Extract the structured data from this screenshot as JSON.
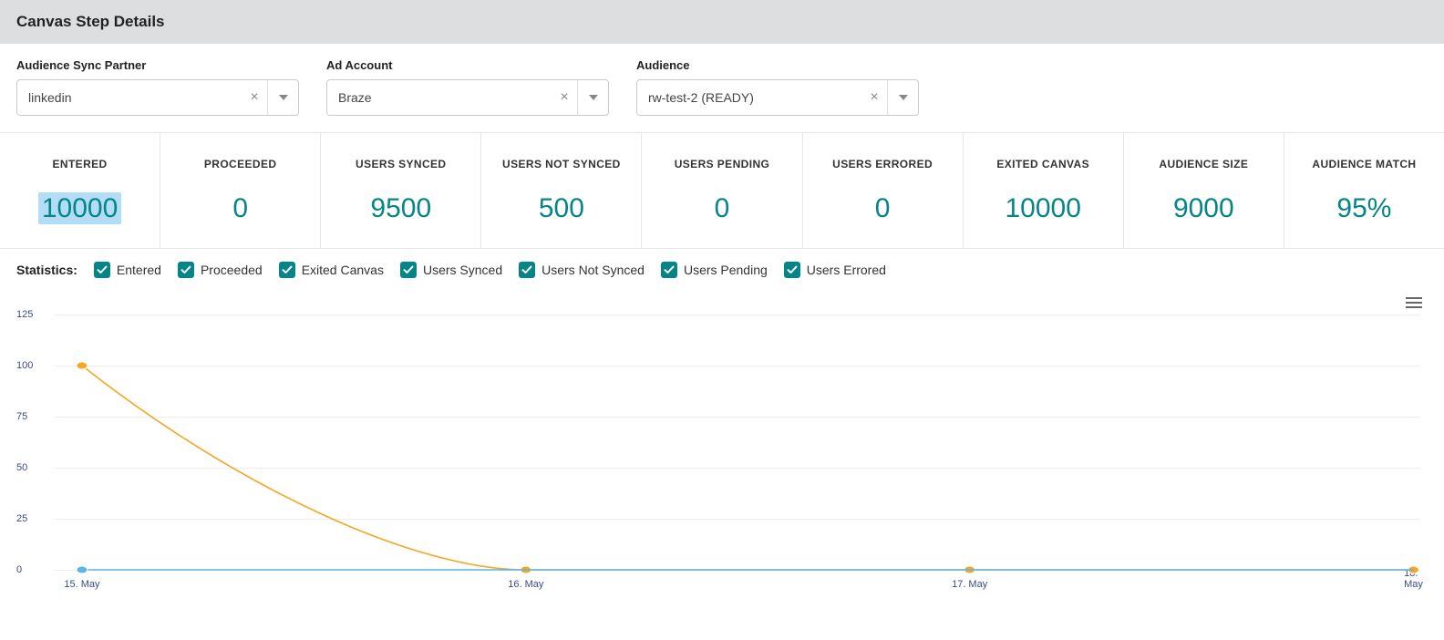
{
  "header": {
    "title": "Canvas Step Details"
  },
  "filters": {
    "partner": {
      "label": "Audience Sync Partner",
      "value": "linkedin"
    },
    "adAccount": {
      "label": "Ad Account",
      "value": "Braze"
    },
    "audience": {
      "label": "Audience",
      "value": "rw-test-2 (READY)"
    }
  },
  "metrics": [
    {
      "label": "ENTERED",
      "value": "10000",
      "highlight": true
    },
    {
      "label": "PROCEEDED",
      "value": "0"
    },
    {
      "label": "USERS SYNCED",
      "value": "9500"
    },
    {
      "label": "USERS NOT SYNCED",
      "value": "500"
    },
    {
      "label": "USERS PENDING",
      "value": "0"
    },
    {
      "label": "USERS ERRORED",
      "value": "0"
    },
    {
      "label": "EXITED CANVAS",
      "value": "10000"
    },
    {
      "label": "AUDIENCE SIZE",
      "value": "9000"
    },
    {
      "label": "AUDIENCE MATCH",
      "value": "95%"
    }
  ],
  "metric_value_color": "#068589",
  "metric_highlight_bg": "#b3dcf7",
  "statistics": {
    "label": "Statistics:",
    "items": [
      {
        "label": "Entered",
        "checked": true
      },
      {
        "label": "Proceeded",
        "checked": true
      },
      {
        "label": "Exited Canvas",
        "checked": true
      },
      {
        "label": "Users Synced",
        "checked": true
      },
      {
        "label": "Users Not Synced",
        "checked": true
      },
      {
        "label": "Users Pending",
        "checked": true
      },
      {
        "label": "Users Errored",
        "checked": true
      }
    ],
    "checkbox_color": "#068589"
  },
  "chart": {
    "type": "line",
    "ylim": [
      0,
      125
    ],
    "yticks": [
      0,
      25,
      50,
      75,
      100,
      125
    ],
    "xticks": [
      "15. May",
      "16. May",
      "17. May",
      "18. May"
    ],
    "x_positions_pct": [
      2,
      34.5,
      67,
      99.5
    ],
    "axis_label_color": "#3b4a8a",
    "label_fontsize": 11,
    "grid_color": "#eceef0",
    "background_color": "#ffffff",
    "series": [
      {
        "name": "orange",
        "color": "#f5a623",
        "line_width": 1.6,
        "marker_radius": 4,
        "marker_indices": [
          0,
          1,
          2,
          3
        ],
        "yvalues": [
          100,
          0,
          0,
          0
        ],
        "curve": "ease-out"
      },
      {
        "name": "blue",
        "color": "#5bb6e6",
        "line_width": 1.6,
        "marker_radius": 4,
        "marker_indices": [
          0
        ],
        "yvalues": [
          0,
          0,
          0,
          0
        ],
        "curve": "linear"
      }
    ]
  }
}
